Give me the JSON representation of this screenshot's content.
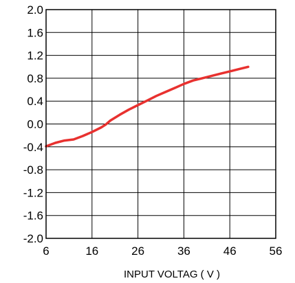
{
  "chart_data": {
    "type": "line",
    "title": "",
    "xlabel": "INPUT VOLTAG ( V )",
    "ylabel": "",
    "xlim": [
      6,
      56
    ],
    "ylim": [
      -2.0,
      2.0
    ],
    "x_ticks": [
      "6",
      "16",
      "26",
      "36",
      "46",
      "56"
    ],
    "y_ticks": [
      "2.0",
      "1.6",
      "1.2",
      "0.8",
      "0.4",
      "0.0",
      "-0.4",
      "-0.8",
      "-1.2",
      "-1.6",
      "-2.0"
    ],
    "grid": true,
    "line_color": "#e8312f",
    "series": [
      {
        "x": [
          6,
          8,
          10,
          12,
          14,
          16,
          18,
          19,
          20,
          22,
          24,
          26,
          28,
          30,
          32,
          34,
          36,
          38,
          40,
          42,
          44,
          46,
          48,
          50
        ],
        "y": [
          -0.39,
          -0.33,
          -0.29,
          -0.27,
          -0.21,
          -0.14,
          -0.06,
          -0.01,
          0.06,
          0.16,
          0.25,
          0.33,
          0.41,
          0.49,
          0.56,
          0.63,
          0.7,
          0.76,
          0.8,
          0.84,
          0.88,
          0.92,
          0.96,
          1.0
        ]
      }
    ]
  }
}
